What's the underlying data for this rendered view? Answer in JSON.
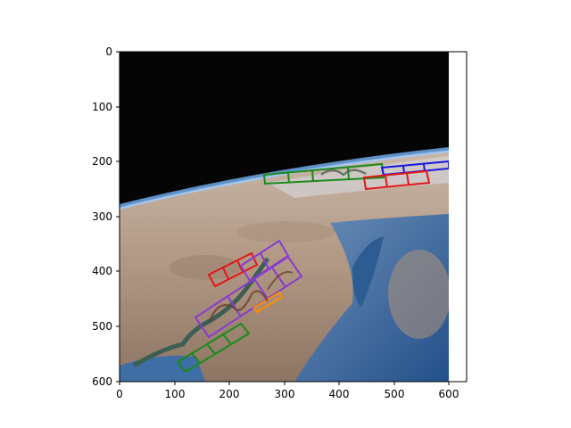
{
  "figure": {
    "x_ticks": [
      "0",
      "100",
      "200",
      "300",
      "400",
      "500",
      "600"
    ],
    "y_ticks": [
      "0",
      "100",
      "200",
      "300",
      "400",
      "500",
      "600"
    ]
  },
  "image": {
    "description_icon": "earth-from-space-photo",
    "colors": {
      "space": "#050505",
      "atmosphere": "#6fa8e8",
      "ocean": "#2f5f95",
      "land": "#b39a86",
      "desert": "#a48b73"
    }
  },
  "annotations": {
    "box_colors": {
      "red": "#e01818",
      "green": "#1a8a1a",
      "blue": "#1818e0",
      "purple": "#8a3bd0",
      "orange": "#ff8c00"
    }
  }
}
